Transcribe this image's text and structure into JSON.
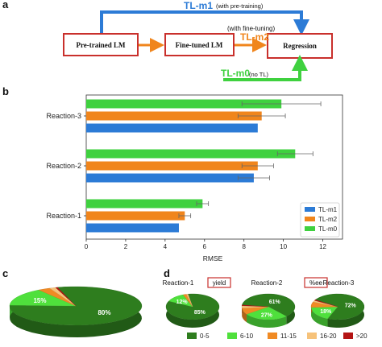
{
  "panel_labels": {
    "a": "a",
    "b": "b",
    "c": "c",
    "d": "d"
  },
  "diagram": {
    "boxes": {
      "pretrained": "Pre-trained LM",
      "finetuned": "Fine-tuned LM",
      "regression": "Regression"
    },
    "tl_m1": {
      "name": "TL-m1",
      "note": "(with pre-training)"
    },
    "tl_m2": {
      "name": "TL-m2",
      "note": "(with fine-tuning)"
    },
    "tl_m0": {
      "name": "TL-m0",
      "note": "(no TL)"
    },
    "colors": {
      "tl_m1": "#2c7bd6",
      "tl_m2": "#f0851c",
      "tl_m0": "#3fd13f",
      "box_border": "#c9302c"
    }
  },
  "chart_data": [
    {
      "type": "bar",
      "orientation": "horizontal",
      "categories": [
        "Reaction-3",
        "Reaction-2",
        "Reaction-1"
      ],
      "series": [
        {
          "name": "TL-m0",
          "color": "#3fd13f",
          "values": [
            9.9,
            10.6,
            5.9
          ],
          "errors": [
            2.0,
            0.9,
            0.3
          ]
        },
        {
          "name": "TL-m2",
          "color": "#f0851c",
          "values": [
            8.9,
            8.7,
            5.0
          ],
          "errors": [
            1.2,
            0.8,
            0.3
          ]
        },
        {
          "name": "TL-m1",
          "color": "#2c7bd6",
          "values": [
            8.7,
            8.5,
            4.7
          ],
          "errors": [
            0.0,
            0.8,
            0.0
          ]
        }
      ],
      "xlabel": "RMSE",
      "xlim": [
        0,
        13
      ],
      "xticks": [
        0,
        2,
        4,
        6,
        8,
        10,
        12
      ],
      "legend": {
        "position": "bottom-right",
        "entries": [
          "TL-m1",
          "TL-m2",
          "TL-m0"
        ]
      }
    },
    {
      "type": "pie",
      "labels": [
        "0-5",
        "6-10",
        "11-15",
        "16-20",
        ">20"
      ],
      "values": [
        80,
        15,
        3,
        1.5,
        0.5
      ],
      "value_labels": [
        "80%",
        "15%",
        "",
        "",
        ""
      ]
    },
    {
      "type": "pie",
      "title": "Reaction-1",
      "tag": "yield",
      "labels": [
        "0-5",
        "6-10",
        "11-15",
        "16-20",
        ">20"
      ],
      "values": [
        85,
        12,
        2,
        1,
        0
      ],
      "value_labels": [
        "85%",
        "12%",
        "",
        "",
        ""
      ]
    },
    {
      "type": "pie",
      "title": "Reaction-2",
      "tag": "%ee",
      "labels": [
        "0-5",
        "6-10",
        "11-15",
        "16-20",
        ">20"
      ],
      "values": [
        61,
        27,
        8,
        3,
        1
      ],
      "value_labels": [
        "61%",
        "27%",
        "",
        "",
        ""
      ]
    },
    {
      "type": "pie",
      "title": "Reaction-3",
      "labels": [
        "0-5",
        "6-10",
        "11-15",
        "16-20",
        ">20"
      ],
      "values": [
        72,
        18,
        7,
        2,
        1
      ],
      "value_labels": [
        "72%",
        "18%",
        "",
        "",
        ""
      ]
    }
  ],
  "pie_legend": {
    "entries": [
      "0-5",
      "6-10",
      "11-15",
      "16-20",
      ">20"
    ],
    "colors": [
      "#2e7d1e",
      "#4fe03c",
      "#f08a24",
      "#f6c27a",
      "#b41414"
    ]
  }
}
